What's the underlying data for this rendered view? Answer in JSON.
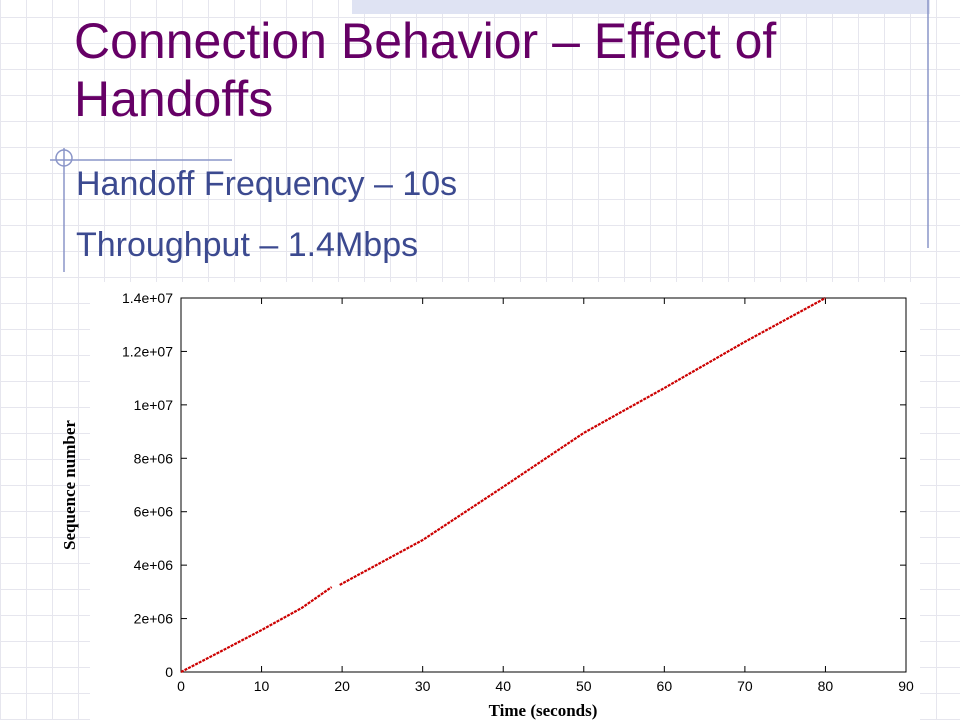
{
  "slide": {
    "title": "Connection Behavior – Effect of Handoffs",
    "bullets": [
      "Handoff Frequency – 10s",
      "Throughput – 1.4Mbps"
    ]
  },
  "chart_data": {
    "type": "line",
    "xlabel": "Time (seconds)",
    "ylabel": "Sequence number",
    "x": [
      0,
      5,
      10,
      15,
      18.7,
      null,
      19.7,
      30,
      40,
      50,
      60,
      70,
      80
    ],
    "values": [
      0,
      780000,
      1570000,
      2400000,
      3180000,
      null,
      3260000,
      4940000,
      6930000,
      8950000,
      10630000,
      12360000,
      14000000
    ],
    "color": "#cc0000",
    "xlim": [
      0,
      90
    ],
    "xticks": [
      0,
      10,
      20,
      30,
      40,
      50,
      60,
      70,
      80,
      90
    ],
    "ylim": [
      0,
      14000000
    ],
    "yticks": [
      0,
      {
        "value": 2000000,
        "label": "2e+06"
      },
      {
        "value": 4000000,
        "label": "4e+06"
      },
      {
        "value": 6000000,
        "label": "6e+06"
      },
      {
        "value": 8000000,
        "label": "8e+06"
      },
      {
        "value": 10000000,
        "label": "1e+07"
      },
      {
        "value": 12000000,
        "label": "1.2e+07"
      },
      {
        "value": 14000000,
        "label": "1.4e+07"
      }
    ]
  }
}
